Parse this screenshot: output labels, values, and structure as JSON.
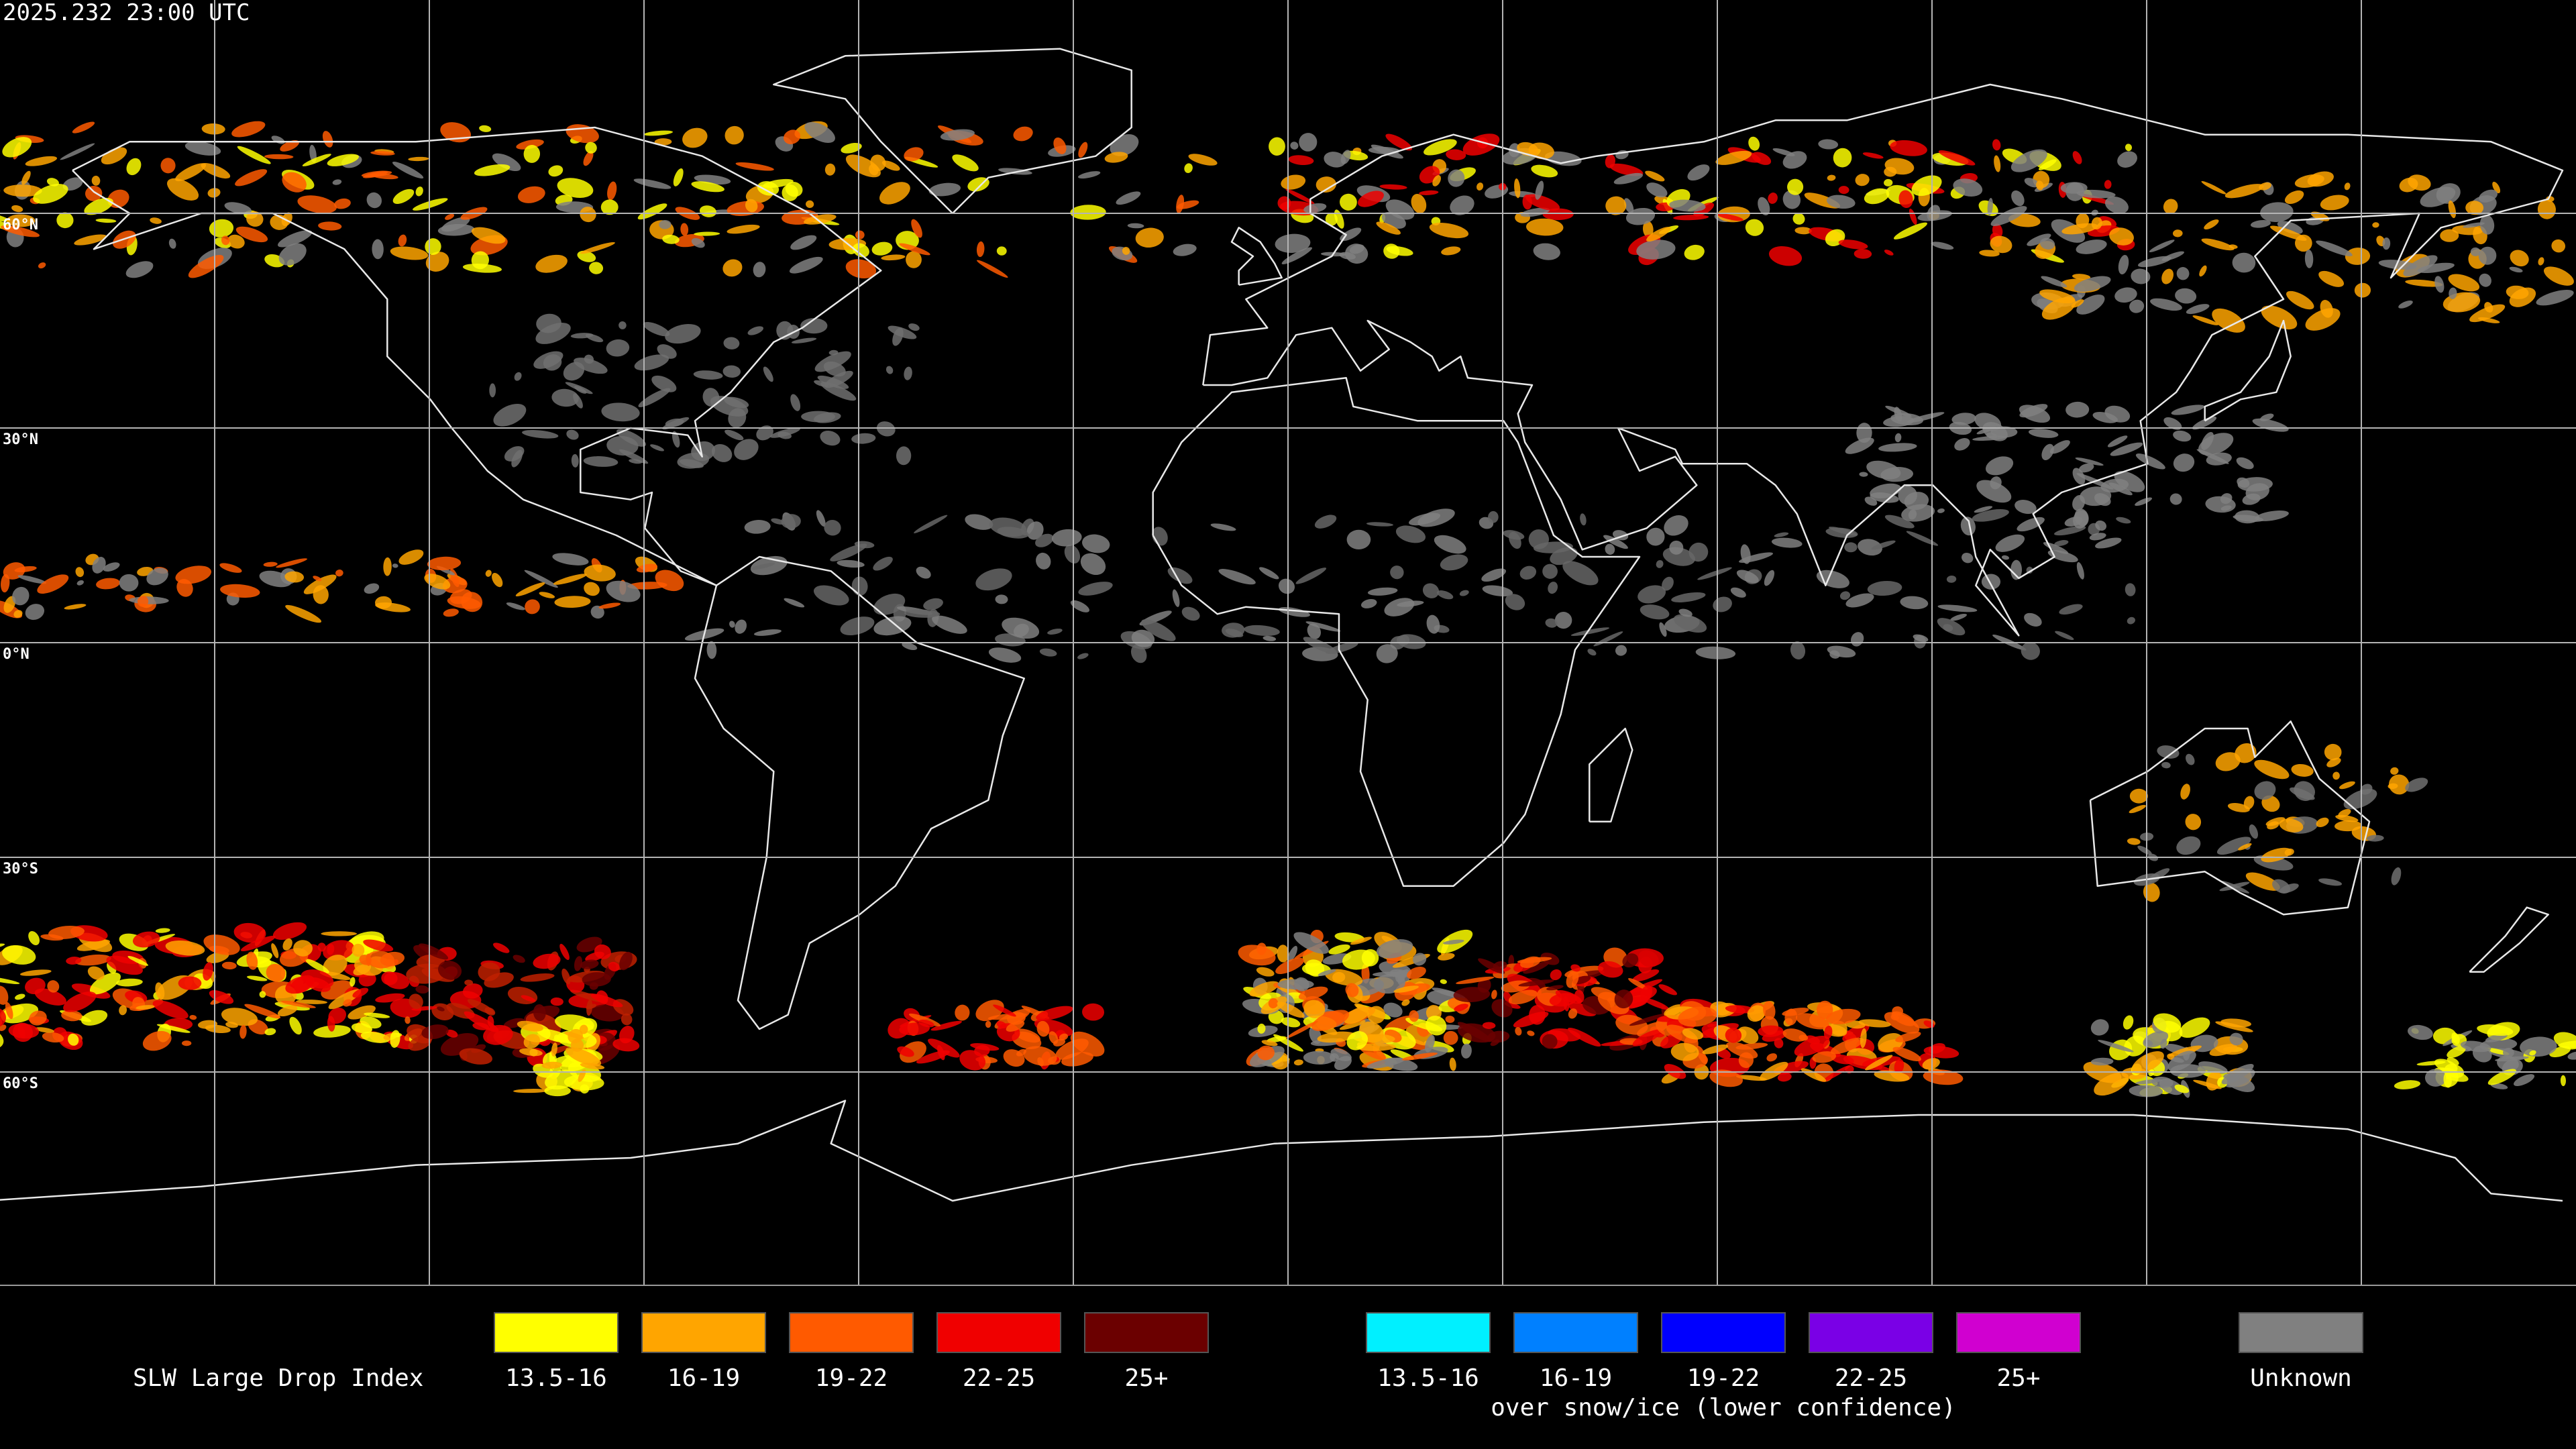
{
  "header": {
    "timestamp": "2025.232 23:00 UTC"
  },
  "map": {
    "latitude_labels": [
      "60°N",
      "30°N",
      "0°N",
      "30°S",
      "60°S"
    ]
  },
  "legend": {
    "title": "SLW Large Drop Index",
    "groups": [
      {
        "items": [
          {
            "label": "13.5-16",
            "color": "#ffff00"
          },
          {
            "label": "16-19",
            "color": "#ffa500"
          },
          {
            "label": "19-22",
            "color": "#ff5a00"
          },
          {
            "label": "22-25",
            "color": "#f00000"
          },
          {
            "label": "25+",
            "color": "#6b0000"
          }
        ]
      },
      {
        "items": [
          {
            "label": "13.5-16",
            "color": "#00f0ff"
          },
          {
            "label": "16-19",
            "color": "#0080ff"
          },
          {
            "label": "19-22",
            "color": "#0000ff"
          },
          {
            "label": "22-25",
            "color": "#7a00e6"
          },
          {
            "label": "25+",
            "color": "#d000d0"
          }
        ],
        "caption": "over snow/ice (lower confidence)"
      },
      {
        "items": [
          {
            "label": "Unknown",
            "color": "#808080"
          }
        ]
      }
    ]
  }
}
